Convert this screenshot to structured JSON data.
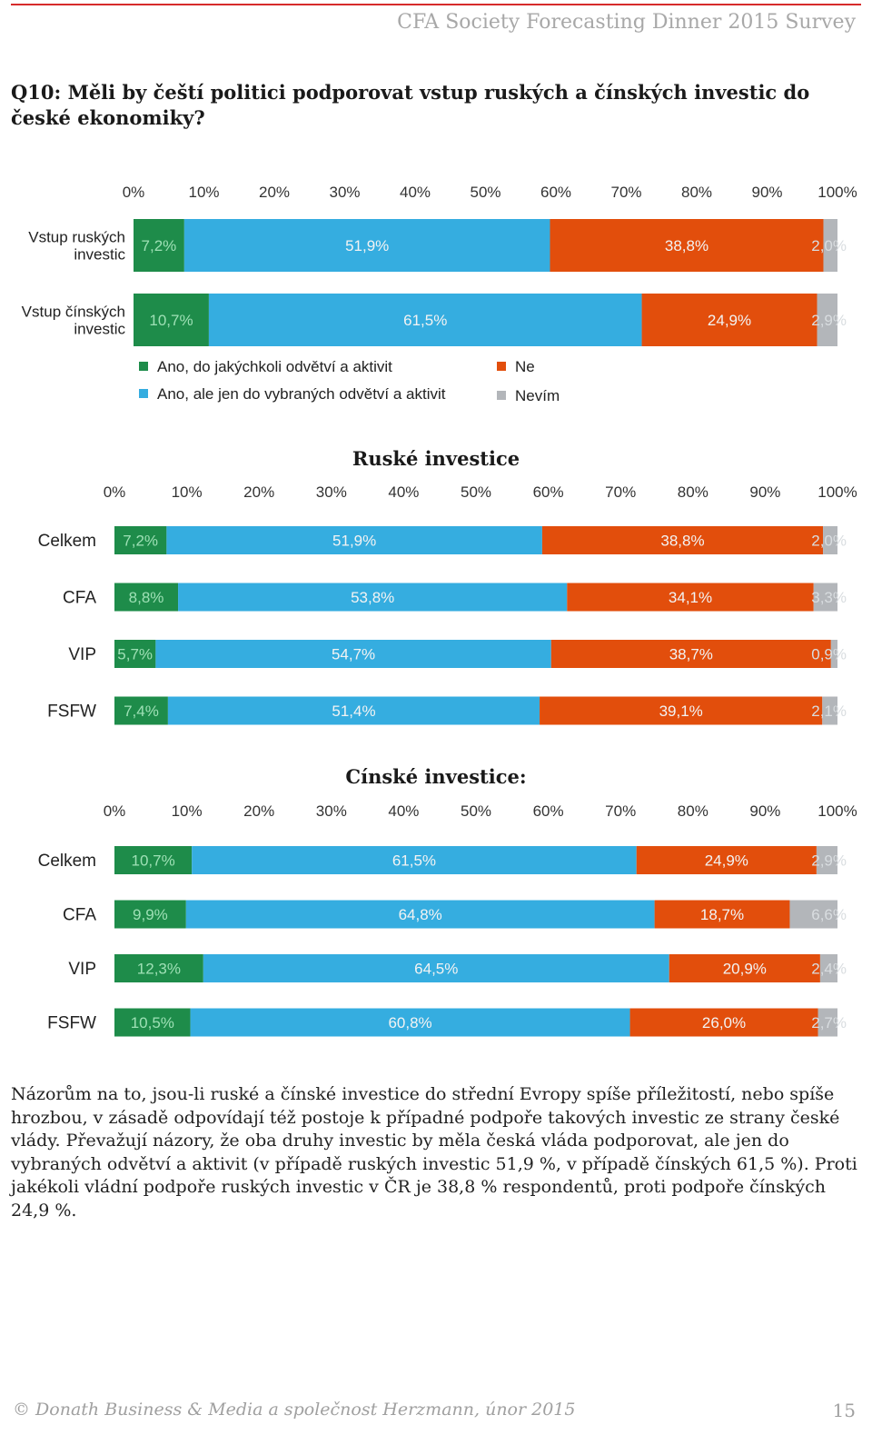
{
  "header": {
    "title": "CFA Society Forecasting Dinner 2015 Survey"
  },
  "question": "Q10: Měli by čeští politici podporovat vstup ruských a čínských investic do české ekonomiky?",
  "colors": {
    "ano_vse": "#1e8c4a",
    "ano_vybrane": "#35ade0",
    "ne": "#e24e0c",
    "nevim": "#b3b6ba"
  },
  "legend": [
    {
      "label": "Ano, do jakýchkoli odvětví a aktivit",
      "color_key": "ano_vse"
    },
    {
      "label": "Ano, ale jen do vybraných odvětví a aktivit",
      "color_key": "ano_vybrane"
    },
    {
      "label": "Ne",
      "color_key": "ne"
    },
    {
      "label": "Nevím",
      "color_key": "nevim"
    }
  ],
  "chart_data": [
    {
      "type": "bar",
      "stacked": "100%",
      "orientation": "horizontal",
      "title": "",
      "x_ticks": [
        "0%",
        "10%",
        "20%",
        "30%",
        "40%",
        "50%",
        "60%",
        "70%",
        "80%",
        "90%",
        "100%"
      ],
      "categories": [
        "Vstup ruských investic",
        "Vstup čínských investic"
      ],
      "category_lines": [
        [
          "Vstup ruských",
          "investic"
        ],
        [
          "Vstup čínských",
          "investic"
        ]
      ],
      "values": [
        [
          7.2,
          51.9,
          38.8,
          2.0
        ],
        [
          10.7,
          61.5,
          24.9,
          2.9
        ]
      ],
      "labels": [
        [
          "7,2%",
          "51,9%",
          "38,8%",
          "2,0%"
        ],
        [
          "10,7%",
          "61,5%",
          "24,9%",
          "2,9%"
        ]
      ],
      "series_order": [
        "ano_vse",
        "ano_vybrane",
        "ne",
        "nevim"
      ],
      "xlim": [
        0,
        100
      ],
      "grid": false
    },
    {
      "type": "bar",
      "stacked": "100%",
      "orientation": "horizontal",
      "title": "Ruské investice",
      "x_ticks": [
        "0%",
        "10%",
        "20%",
        "30%",
        "40%",
        "50%",
        "60%",
        "70%",
        "80%",
        "90%",
        "100%"
      ],
      "categories": [
        "Celkem",
        "CFA",
        "VIP",
        "FSFW"
      ],
      "category_lines": [
        [
          "Celkem"
        ],
        [
          "CFA"
        ],
        [
          "VIP"
        ],
        [
          "FSFW"
        ]
      ],
      "values": [
        [
          7.2,
          51.9,
          38.8,
          2.0
        ],
        [
          8.8,
          53.8,
          34.1,
          3.3
        ],
        [
          5.7,
          54.7,
          38.7,
          0.9
        ],
        [
          7.4,
          51.4,
          39.1,
          2.1
        ]
      ],
      "labels": [
        [
          "7,2%",
          "51,9%",
          "38,8%",
          "2,0%"
        ],
        [
          "8,8%",
          "53,8%",
          "34,1%",
          "3,3%"
        ],
        [
          "5,7%",
          "54,7%",
          "38,7%",
          "0,9%"
        ],
        [
          "7,4%",
          "51,4%",
          "39,1%",
          "2,1%"
        ]
      ],
      "series_order": [
        "ano_vse",
        "ano_vybrane",
        "ne",
        "nevim"
      ],
      "xlim": [
        0,
        100
      ],
      "grid": false
    },
    {
      "type": "bar",
      "stacked": "100%",
      "orientation": "horizontal",
      "title": "Čínské investice:",
      "x_ticks": [
        "0%",
        "10%",
        "20%",
        "30%",
        "40%",
        "50%",
        "60%",
        "70%",
        "80%",
        "90%",
        "100%"
      ],
      "categories": [
        "Celkem",
        "CFA",
        "VIP",
        "FSFW"
      ],
      "category_lines": [
        [
          "Celkem"
        ],
        [
          "CFA"
        ],
        [
          "VIP"
        ],
        [
          "FSFW"
        ]
      ],
      "values": [
        [
          10.7,
          61.5,
          24.9,
          2.9
        ],
        [
          9.9,
          64.8,
          18.7,
          6.6
        ],
        [
          12.3,
          64.5,
          20.9,
          2.4
        ],
        [
          10.5,
          60.8,
          26.0,
          2.7
        ]
      ],
      "labels": [
        [
          "10,7%",
          "61,5%",
          "24,9%",
          "2,9%"
        ],
        [
          "9,9%",
          "64,8%",
          "18,7%",
          "6,6%"
        ],
        [
          "12,3%",
          "64,5%",
          "20,9%",
          "2,4%"
        ],
        [
          "10,5%",
          "60,8%",
          "26,0%",
          "2,7%"
        ]
      ],
      "series_order": [
        "ano_vse",
        "ano_vybrane",
        "ne",
        "nevim"
      ],
      "xlim": [
        0,
        100
      ],
      "grid": false
    }
  ],
  "paragraph": "Názorům na to, jsou-li ruské a čínské investice do střední Evropy spíše příležitostí, nebo spíše hrozbou, v zásadě odpovídají též postoje k případné podpoře takových investic ze strany české vlády. Převažují názory, že oba druhy investic by měla česká vláda podporovat, ale jen do vybraných odvětví a aktivit (v případě ruských investic 51,9 %, v případě čínských 61,5 %). Proti jakékoli vládní podpoře ruských investic v ČR je 38,8 % respondentů, proti podpoře čínských 24,9 %.",
  "footer": {
    "left": "© Donath Business & Media a společnost Herzmann, únor 2015",
    "page": "15"
  }
}
